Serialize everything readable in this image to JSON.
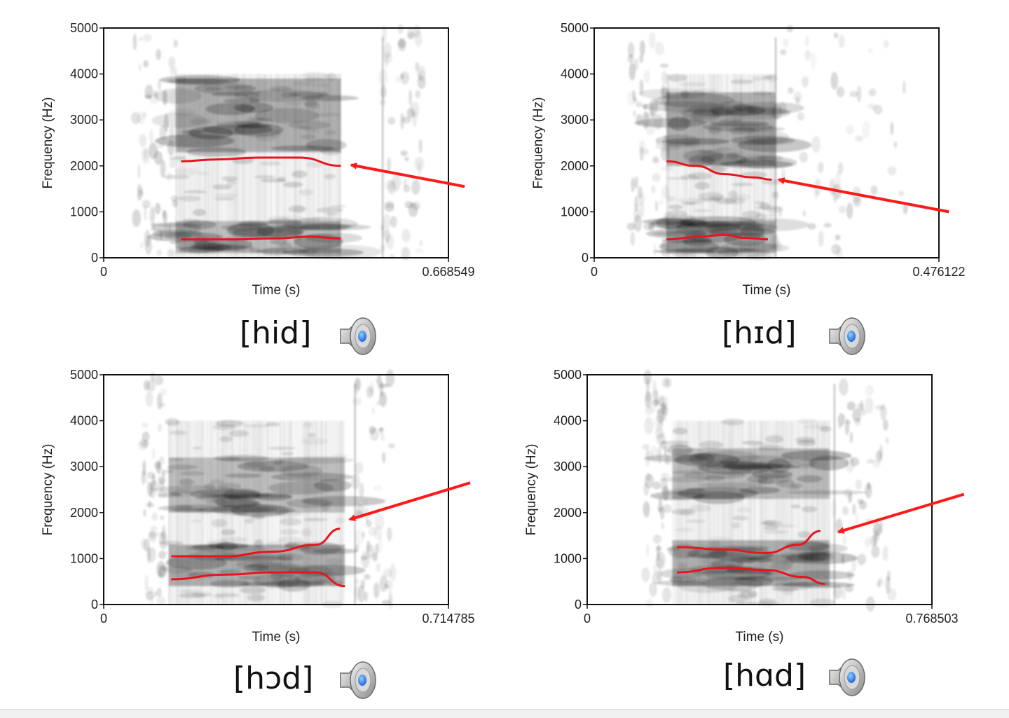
{
  "chart_data": [
    {
      "type": "spectrogram",
      "word": "[hid]",
      "ylabel": "Frequency (Hz)",
      "xlabel": "Time (s)",
      "ylim": [
        0,
        5000
      ],
      "xlim": [
        0,
        0.668549
      ],
      "y_ticks": [
        "0",
        "1000",
        "2000",
        "3000",
        "4000",
        "5000"
      ],
      "x_ticks": [
        "0",
        "0.668549"
      ],
      "vowel_segment": [
        0.14,
        0.46
      ],
      "noise_segments": [
        [
          0.06,
          0.14
        ],
        [
          0.54,
          0.62
        ]
      ],
      "dark_bands_hz": [
        [
          2300,
          3900
        ],
        [
          100,
          800
        ]
      ],
      "formant_tracks": [
        {
          "name": "F1",
          "points": [
            [
              0.15,
              400
            ],
            [
              0.25,
              400
            ],
            [
              0.33,
              420
            ],
            [
              0.4,
              460
            ],
            [
              0.46,
              420
            ]
          ]
        },
        {
          "name": "F2",
          "points": [
            [
              0.15,
              2100
            ],
            [
              0.22,
              2140
            ],
            [
              0.3,
              2180
            ],
            [
              0.38,
              2180
            ],
            [
              0.46,
              2000
            ]
          ]
        }
      ],
      "arrow": {
        "from": [
          0.7,
          1550
        ],
        "to": [
          0.48,
          2020
        ]
      }
    },
    {
      "type": "spectrogram",
      "word": "[hɪd]",
      "ylabel": "Frequency (Hz)",
      "xlabel": "Time (s)",
      "ylim": [
        0,
        5000
      ],
      "xlim": [
        0,
        0.476122
      ],
      "y_ticks": [
        "0",
        "1000",
        "2000",
        "3000",
        "4000",
        "5000"
      ],
      "x_ticks": [
        "0",
        "0.476122"
      ],
      "vowel_segment": [
        0.1,
        0.25
      ],
      "noise_segments": [
        [
          0.05,
          0.1
        ],
        [
          0.25,
          0.43
        ]
      ],
      "dark_bands_hz": [
        [
          2000,
          3600
        ],
        [
          100,
          800
        ]
      ],
      "formant_tracks": [
        {
          "name": "F1",
          "points": [
            [
              0.1,
              400
            ],
            [
              0.14,
              450
            ],
            [
              0.18,
              500
            ],
            [
              0.21,
              430
            ],
            [
              0.24,
              400
            ]
          ]
        },
        {
          "name": "F2",
          "points": [
            [
              0.1,
              2100
            ],
            [
              0.14,
              2000
            ],
            [
              0.18,
              1820
            ],
            [
              0.22,
              1750
            ],
            [
              0.245,
              1700
            ]
          ]
        }
      ],
      "arrow": {
        "from": [
          0.49,
          1000
        ],
        "to": [
          0.255,
          1700
        ]
      }
    },
    {
      "type": "spectrogram",
      "word": "[hɔd]",
      "ylabel": "Frequency (Hz)",
      "xlabel": "Time (s)",
      "ylim": [
        0,
        5000
      ],
      "xlim": [
        0,
        0.714785
      ],
      "y_ticks": [
        "0",
        "1000",
        "2000",
        "3000",
        "4000",
        "5000"
      ],
      "x_ticks": [
        "0",
        "0.714785"
      ],
      "vowel_segment": [
        0.135,
        0.5
      ],
      "noise_segments": [
        [
          0.08,
          0.125
        ],
        [
          0.52,
          0.6
        ]
      ],
      "dark_bands_hz": [
        [
          400,
          1300
        ],
        [
          2000,
          3200
        ]
      ],
      "formant_tracks": [
        {
          "name": "F1",
          "points": [
            [
              0.14,
              550
            ],
            [
              0.25,
              650
            ],
            [
              0.35,
              700
            ],
            [
              0.44,
              700
            ],
            [
              0.5,
              400
            ]
          ]
        },
        {
          "name": "F2",
          "points": [
            [
              0.14,
              1050
            ],
            [
              0.25,
              1050
            ],
            [
              0.35,
              1150
            ],
            [
              0.44,
              1300
            ],
            [
              0.49,
              1650
            ]
          ]
        }
      ],
      "arrow": {
        "from": [
          0.76,
          2650
        ],
        "to": [
          0.51,
          1850
        ]
      }
    },
    {
      "type": "spectrogram",
      "word": "[hɑd]",
      "ylabel": "Frequency (Hz)",
      "xlabel": "Time (s)",
      "ylim": [
        0,
        5000
      ],
      "xlim": [
        0,
        0.768503
      ],
      "y_ticks": [
        "0",
        "1000",
        "2000",
        "3000",
        "4000",
        "5000"
      ],
      "x_ticks": [
        "0",
        "0.768503"
      ],
      "vowel_segment": [
        0.19,
        0.54
      ],
      "noise_segments": [
        [
          0.13,
          0.18
        ],
        [
          0.55,
          0.68
        ]
      ],
      "dark_bands_hz": [
        [
          400,
          1400
        ],
        [
          2300,
          3400
        ]
      ],
      "formant_tracks": [
        {
          "name": "F1",
          "points": [
            [
              0.2,
              700
            ],
            [
              0.3,
              800
            ],
            [
              0.4,
              750
            ],
            [
              0.48,
              600
            ],
            [
              0.53,
              450
            ]
          ]
        },
        {
          "name": "F2",
          "points": [
            [
              0.2,
              1250
            ],
            [
              0.3,
              1200
            ],
            [
              0.4,
              1120
            ],
            [
              0.47,
              1300
            ],
            [
              0.52,
              1600
            ]
          ]
        }
      ],
      "arrow": {
        "from": [
          0.84,
          2400
        ],
        "to": [
          0.56,
          1580
        ]
      }
    }
  ]
}
